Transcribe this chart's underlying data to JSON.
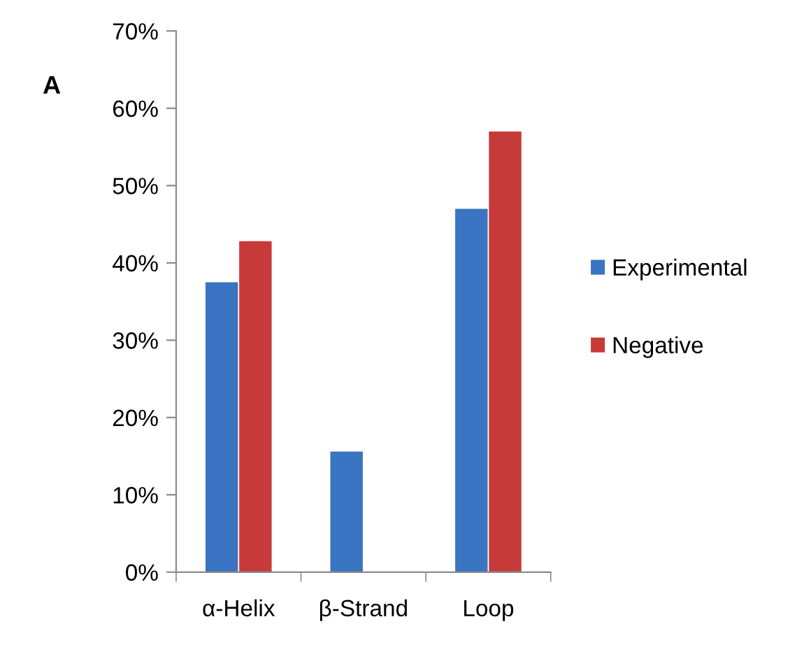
{
  "chart_data": {
    "type": "bar",
    "categories": [
      "α-Helix",
      "β-Strand",
      "Loop"
    ],
    "series": [
      {
        "name": "Experimental",
        "color": "#3a74c2",
        "values": [
          37.5,
          15.6,
          47.0
        ]
      },
      {
        "name": "Negative",
        "color": "#c73a3a",
        "values": [
          42.8,
          null,
          57.0
        ]
      }
    ],
    "ylim": [
      0,
      70
    ],
    "yticks": [
      {
        "value": 0,
        "label": "0%"
      },
      {
        "value": 10,
        "label": "10%"
      },
      {
        "value": 20,
        "label": "20%"
      },
      {
        "value": 30,
        "label": "30%"
      },
      {
        "value": 40,
        "label": "40%"
      },
      {
        "value": 50,
        "label": "50%"
      },
      {
        "value": 60,
        "label": "60%"
      },
      {
        "value": 70,
        "label": "70%"
      }
    ],
    "legend": "right",
    "grid": false,
    "annotations": [
      "A"
    ]
  }
}
